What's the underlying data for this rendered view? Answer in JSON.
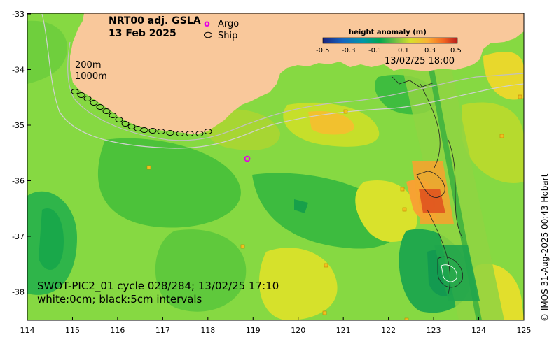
{
  "map": {
    "title_line1": "NRT00 adj. GSLA",
    "title_line2": "13 Feb 2025",
    "legend": {
      "argo_symbol": "o",
      "argo_label": "Argo",
      "ship_label": "Ship",
      "argo_color": "#e600e6"
    },
    "colorbar": {
      "title": "height anomaly (m)",
      "ticks": [
        "-0.5",
        "-0.3",
        "-0.1",
        "0.1",
        "0.3",
        "0.5"
      ],
      "colors": [
        "#1a237e",
        "#1565c0",
        "#0288d1",
        "#00acc1",
        "#00897b",
        "#2e7d32",
        "#43a047",
        "#7cb342",
        "#c0ca33",
        "#fdd835",
        "#ffb300",
        "#fb8c00",
        "#f4511e",
        "#b71c1c"
      ]
    },
    "isobaths": {
      "depth1": "200m",
      "depth2": "1000m"
    },
    "swath_time": "13/02/25 18:00",
    "swot_line1": "SWOT-PIC2_01 cycle 028/284; 13/02/25 17:10",
    "swot_line2": "white:0cm; black:5cm intervals",
    "credit": "© IMOS 31-Aug-2025 00:43 Hobart",
    "x_ticks": [
      "114",
      "115",
      "116",
      "117",
      "118",
      "119",
      "120",
      "121",
      "122",
      "123",
      "124",
      "125"
    ],
    "y_ticks": [
      "-33",
      "-34",
      "-35",
      "-36",
      "-37",
      "-38"
    ],
    "land_color": "#f9c89b",
    "ocean_color": "#7ed957"
  }
}
